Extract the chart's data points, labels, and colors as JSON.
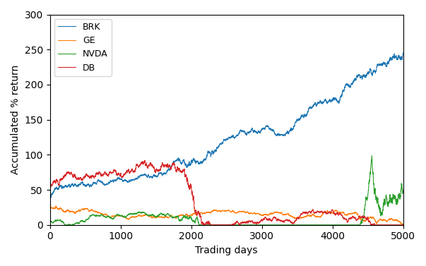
{
  "xlabel": "Trading days",
  "ylabel": "Accumulated % return",
  "xlim": [
    0,
    5000
  ],
  "ylim": [
    0,
    300
  ],
  "xticks": [
    0,
    1000,
    2000,
    3000,
    4000,
    5000
  ],
  "yticks": [
    0,
    50,
    100,
    150,
    200,
    250,
    300
  ],
  "n_days": 5000,
  "series": {
    "BRK": {
      "color": "#1f77b4",
      "label": "BRK"
    },
    "GE": {
      "color": "#ff7f0e",
      "label": "GE"
    },
    "NVDA": {
      "color": "#2ca02c",
      "label": "NVDA"
    },
    "DB": {
      "color": "#d62728",
      "label": "DB"
    }
  },
  "legend_loc": "upper left",
  "figsize": [
    6.03,
    3.77
  ],
  "dpi": 100
}
